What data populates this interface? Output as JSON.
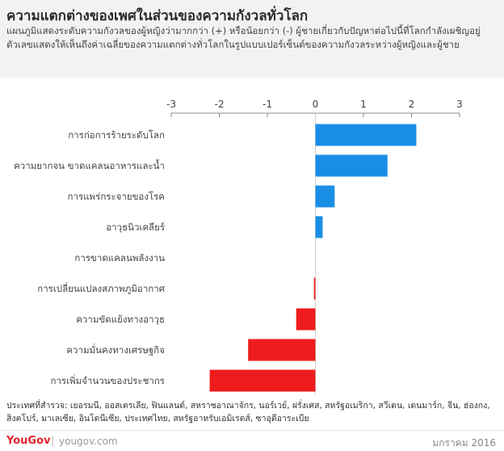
{
  "header": {
    "title": "ความแตกต่างของเพศในส่วนของความกังวลทั่วโลก",
    "subtitle": "แผนภูมิแสดงระดับความกังวลของผู้หญิงว่ามากกว่า (+) หรือน้อยกว่า (-) ผู้ชายเกี่ยวกับปัญหาต่อไปนี้ที่โลกกำลังเผชิญอยู่ ตัวเลขแสดงให้เห็นถึงค่าเฉลี่ยของความแตกต่างทั่วโลกในรูปแบบเปอร์เซ็นต์ของความกังวลระหว่างผู้หญิงและผู้ชาย"
  },
  "chart_data": {
    "type": "bar",
    "orientation": "horizontal",
    "categories": [
      "การก่อการร้ายระดับโลก",
      "ความยากจน ขาดแคลนอาหารและน้ำ",
      "การแพร่กระจายของโรค",
      "อาวุธนิวเคลียร์",
      "การขาดแคลนพลังงาน",
      "การเปลี่ยนแปลงสภาพภูมิอากาศ",
      "ความขัดแย้งทางอาวุธ",
      "ความมั่นคงทางเศรษฐกิจ",
      "การเพิ่มจำนวนของประชากร"
    ],
    "values": [
      2.1,
      1.5,
      0.4,
      0.15,
      0.0,
      -0.03,
      -0.4,
      -1.4,
      -2.2
    ],
    "xlim": [
      -3,
      3
    ],
    "ticks": [
      "-3",
      "-2",
      "-1",
      "0",
      "1",
      "2",
      "3"
    ],
    "positive_color": "#1a8ee5",
    "negative_color": "#ee1c1c",
    "axis_position": "top"
  },
  "footnote": "ประเทศที่สำรวจ: เยอรมนี, ออสเตรเลีย, ฟินแลนด์, สหราชอาณาจักร, นอร์เวย์, ฝรั่งเศส, สหรัฐอเมริกา, สวีเดน, เดนมาร์ก, จีน, ฮ่องกง, สิงคโปร์, มาเลเซีย, อินโดนีเซีย, ประเทศไทย, สหรัฐอาหรับเอมิเรตส์, ซาอุดีอาระเบีย",
  "footer": {
    "logo": "YouGov",
    "site": "yougov.com",
    "date": "มกราคม 2016"
  }
}
